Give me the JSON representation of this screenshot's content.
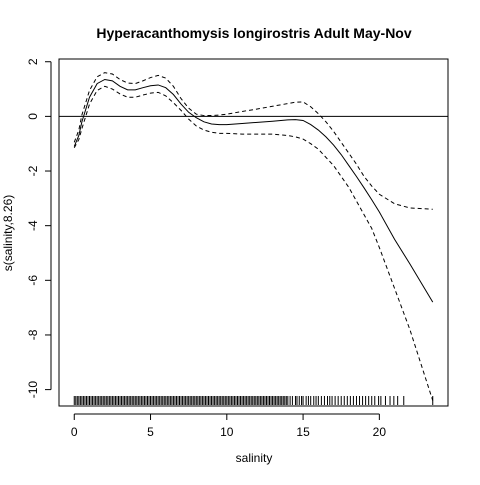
{
  "chart_data": {
    "type": "line",
    "title": "Hyperacanthomysis longirostris Adult  May-Nov",
    "xlabel": "salinity",
    "ylabel": "s(salinity,8.26)",
    "xlim": [
      -1,
      24.5
    ],
    "ylim": [
      -10.6,
      2.1
    ],
    "xticks": [
      0,
      5,
      10,
      15,
      20
    ],
    "xtick_labels": [
      "0",
      "5",
      "10",
      "15",
      "20"
    ],
    "yticks": [
      2,
      0,
      -2,
      -4,
      -6,
      -8,
      -10
    ],
    "ytick_labels": [
      "2",
      "0",
      "-2",
      "-4",
      "-6",
      "-8",
      "-10"
    ],
    "reference_line_y": 0,
    "grid": false,
    "legend": "none",
    "series": [
      {
        "style": "solid",
        "x": [
          0.0,
          0.3,
          0.5,
          1.0,
          1.5,
          2.0,
          2.5,
          3.0,
          3.5,
          4.0,
          4.5,
          5.0,
          5.5,
          6.0,
          6.5,
          7.0,
          7.5,
          8.0,
          8.5,
          9.0,
          9.5,
          10.0,
          11.0,
          12.0,
          13.0,
          14.0,
          14.5,
          15.0,
          15.5,
          16.0,
          16.5,
          17.0,
          17.5,
          18.0,
          18.5,
          19.0,
          19.5,
          20.0,
          21.0,
          22.0,
          23.5
        ],
        "values": [
          -1.1,
          -0.7,
          -0.2,
          0.7,
          1.2,
          1.35,
          1.3,
          1.1,
          0.97,
          0.97,
          1.05,
          1.12,
          1.15,
          1.05,
          0.8,
          0.45,
          0.15,
          -0.05,
          -0.2,
          -0.28,
          -0.3,
          -0.3,
          -0.26,
          -0.22,
          -0.18,
          -0.13,
          -0.12,
          -0.15,
          -0.3,
          -0.5,
          -0.75,
          -1.05,
          -1.4,
          -1.8,
          -2.2,
          -2.62,
          -3.05,
          -3.5,
          -4.5,
          -5.4,
          -6.8
        ]
      },
      {
        "style": "dashed",
        "x": [
          0.0,
          0.3,
          0.5,
          1.0,
          1.5,
          2.0,
          2.5,
          3.0,
          3.5,
          4.0,
          4.5,
          5.0,
          5.5,
          6.0,
          6.5,
          7.0,
          7.5,
          8.0,
          8.5,
          9.0,
          9.5,
          10.0,
          11.0,
          12.0,
          13.0,
          14.0,
          14.5,
          15.0,
          15.5,
          16.0,
          16.5,
          17.0,
          17.5,
          18.0,
          18.5,
          19.0,
          19.5,
          20.0,
          21.0,
          22.0,
          23.5
        ],
        "values": [
          -0.95,
          -0.5,
          0.05,
          0.95,
          1.45,
          1.6,
          1.55,
          1.35,
          1.22,
          1.2,
          1.3,
          1.42,
          1.5,
          1.4,
          1.1,
          0.65,
          0.3,
          0.08,
          0.03,
          0.03,
          0.05,
          0.08,
          0.18,
          0.27,
          0.37,
          0.47,
          0.52,
          0.53,
          0.35,
          0.1,
          -0.2,
          -0.55,
          -0.95,
          -1.35,
          -1.75,
          -2.2,
          -2.55,
          -2.85,
          -3.2,
          -3.35,
          -3.4
        ]
      },
      {
        "style": "dashed",
        "x": [
          0.0,
          0.3,
          0.5,
          1.0,
          1.5,
          2.0,
          2.5,
          3.0,
          3.5,
          4.0,
          4.5,
          5.0,
          5.5,
          6.0,
          6.5,
          7.0,
          7.5,
          8.0,
          8.5,
          9.0,
          9.5,
          10.0,
          11.0,
          12.0,
          13.0,
          14.0,
          14.5,
          15.0,
          15.5,
          16.0,
          16.5,
          17.0,
          17.5,
          18.0,
          18.5,
          19.0,
          19.5,
          20.0,
          21.0,
          22.0,
          23.5
        ],
        "values": [
          -1.15,
          -0.85,
          -0.45,
          0.45,
          0.95,
          1.1,
          1.0,
          0.82,
          0.7,
          0.7,
          0.78,
          0.85,
          0.88,
          0.75,
          0.5,
          0.22,
          -0.1,
          -0.35,
          -0.5,
          -0.58,
          -0.62,
          -0.62,
          -0.65,
          -0.65,
          -0.65,
          -0.7,
          -0.75,
          -0.83,
          -1.0,
          -1.2,
          -1.5,
          -1.8,
          -2.2,
          -2.6,
          -3.1,
          -3.6,
          -4.1,
          -4.8,
          -6.3,
          -7.8,
          -10.4
        ]
      }
    ],
    "rug": {
      "x": [
        0.0,
        0.1,
        0.2,
        0.3,
        0.4,
        0.5,
        0.6,
        0.7,
        0.8,
        0.9,
        1.0,
        1.1,
        1.2,
        1.3,
        1.4,
        1.5,
        1.6,
        1.7,
        1.8,
        1.9,
        2.0,
        2.1,
        2.2,
        2.3,
        2.4,
        2.5,
        2.6,
        2.7,
        2.8,
        2.9,
        3.0,
        3.1,
        3.2,
        3.3,
        3.4,
        3.5,
        3.6,
        3.7,
        3.8,
        3.9,
        4.0,
        4.1,
        4.2,
        4.3,
        4.4,
        4.5,
        4.6,
        4.7,
        4.8,
        4.9,
        5.0,
        5.1,
        5.2,
        5.3,
        5.4,
        5.5,
        5.6,
        5.7,
        5.8,
        5.9,
        6.0,
        6.1,
        6.2,
        6.3,
        6.4,
        6.5,
        6.6,
        6.7,
        6.8,
        6.9,
        7.0,
        7.1,
        7.2,
        7.3,
        7.4,
        7.5,
        7.6,
        7.7,
        7.8,
        7.9,
        8.0,
        8.1,
        8.2,
        8.3,
        8.4,
        8.5,
        8.6,
        8.7,
        8.8,
        8.9,
        9.0,
        9.1,
        9.2,
        9.3,
        9.4,
        9.5,
        9.6,
        9.7,
        9.8,
        9.9,
        10.0,
        10.1,
        10.2,
        10.3,
        10.4,
        10.5,
        10.6,
        10.7,
        10.8,
        10.9,
        11.0,
        11.1,
        11.2,
        11.3,
        11.4,
        11.5,
        11.6,
        11.7,
        11.8,
        11.9,
        12.0,
        12.1,
        12.2,
        12.3,
        12.4,
        12.5,
        12.6,
        12.7,
        12.8,
        12.9,
        13.0,
        13.1,
        13.2,
        13.3,
        13.4,
        13.5,
        13.6,
        13.7,
        13.8,
        13.9,
        14.0,
        14.15,
        14.3,
        14.5,
        14.6,
        14.75,
        14.9,
        15.0,
        15.2,
        15.35,
        15.5,
        15.7,
        15.85,
        16.0,
        16.2,
        16.4,
        16.6,
        16.75,
        16.9,
        17.1,
        17.3,
        17.5,
        17.7,
        17.9,
        18.1,
        18.3,
        18.5,
        18.7,
        18.9,
        19.1,
        19.3,
        19.5,
        19.7,
        19.95,
        20.1,
        20.4,
        20.7,
        20.95,
        21.2,
        21.6,
        23.5
      ]
    }
  }
}
